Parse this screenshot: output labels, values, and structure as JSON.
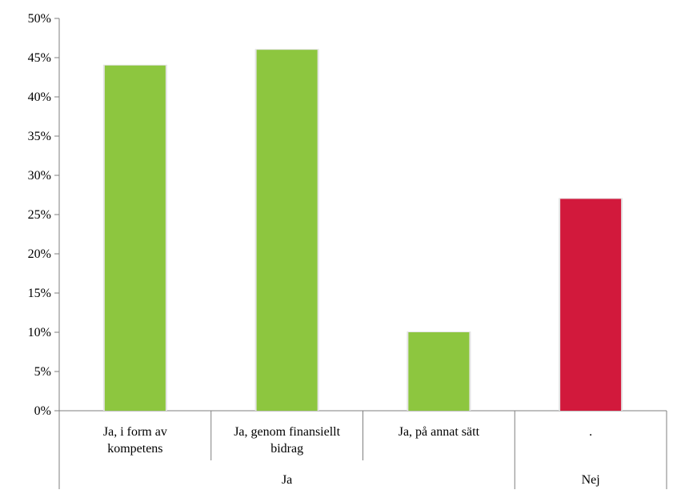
{
  "chart_data": {
    "type": "bar",
    "title": "",
    "xlabel": "",
    "ylabel": "",
    "ylim": [
      0,
      0.5
    ],
    "yticks": [
      0,
      0.05,
      0.1,
      0.15,
      0.2,
      0.25,
      0.3,
      0.35,
      0.4,
      0.45,
      0.5
    ],
    "ytick_labels": [
      "0%",
      "5%",
      "10%",
      "15%",
      "20%",
      "25%",
      "30%",
      "35%",
      "40%",
      "45%",
      "50%"
    ],
    "grid": false,
    "legend": "none",
    "categories": [
      {
        "lines": [
          "Ja, i form av",
          "kompetens"
        ],
        "group": "Ja"
      },
      {
        "lines": [
          "Ja, genom finansiellt",
          "bidrag"
        ],
        "group": "Ja"
      },
      {
        "lines": [
          "Ja, på annat sätt"
        ],
        "group": "Ja"
      },
      {
        "lines": [
          "."
        ],
        "group": "Nej"
      }
    ],
    "groups": [
      "Ja",
      "Nej"
    ],
    "values": [
      0.44,
      0.46,
      0.1,
      0.27
    ],
    "colors": [
      "#8dc63f",
      "#8dc63f",
      "#8dc63f",
      "#d2193c"
    ]
  }
}
